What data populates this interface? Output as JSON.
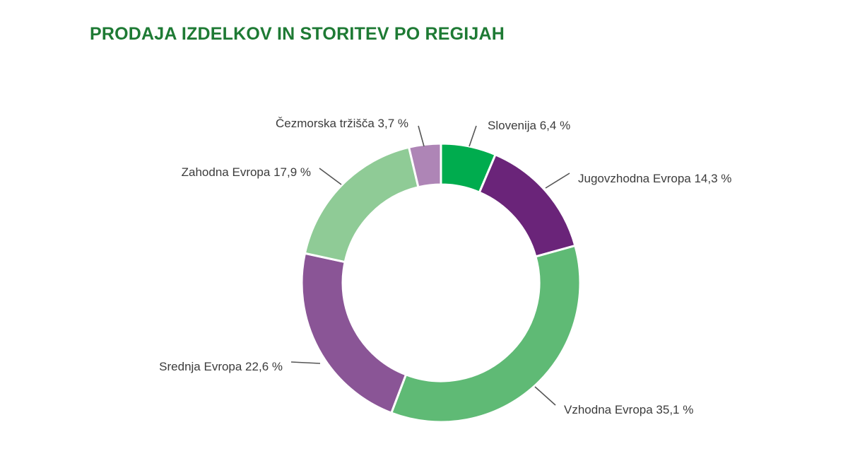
{
  "chart_data": {
    "type": "pie",
    "title": "PRODAJA IZDELKOV IN STORITEV PO REGIJAH",
    "donut": true,
    "unit": "%",
    "slices": [
      {
        "label": "Slovenija 6,4 %",
        "value": 6.4,
        "color": "#00ac4e"
      },
      {
        "label": "Jugovzhodna Evropa 14,3 %",
        "value": 14.3,
        "color": "#6a2479"
      },
      {
        "label": "Vzhodna Evropa 35,1 %",
        "value": 35.1,
        "color": "#5fba75"
      },
      {
        "label": "Srednja Evropa 22,6 %",
        "value": 22.6,
        "color": "#8a5596"
      },
      {
        "label": "Zahodna Evropa 17,9 %",
        "value": 17.9,
        "color": "#8fcb96"
      },
      {
        "label": "Čezmorska tržišča 3,7 %",
        "value": 3.7,
        "color": "#ae85b6"
      }
    ]
  },
  "colors": {
    "title": "#1e7a34",
    "label_text": "#3c3c3c",
    "leader_line": "#555555"
  }
}
